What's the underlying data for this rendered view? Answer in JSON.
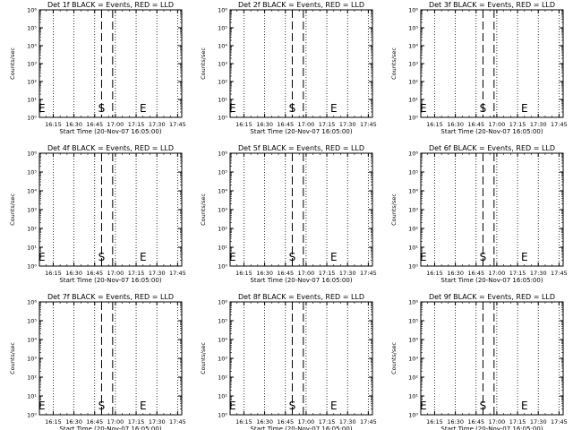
{
  "chart_data": [
    {
      "type": "line",
      "title": "Det 1f BLACK = Events, RED = LLD",
      "xlabel": "Start Time (20-Nov-07 16:05:00)",
      "start_label": "S",
      "end_label": "E",
      "series": []
    },
    {
      "type": "line",
      "title": "Det 2f BLACK = Events, RED = LLD",
      "xlabel": "Start Time (20-Nov-07 16:05:00)",
      "start_label": "S",
      "end_label": "E",
      "series": []
    },
    {
      "type": "line",
      "title": "Det 3f BLACK = Events, RED = LLD",
      "xlabel": "Start Time (20-Nov-07 16:05:00)",
      "start_label": "S",
      "end_label": "E",
      "series": []
    },
    {
      "type": "line",
      "title": "Det 4f BLACK = Events, RED = LLD",
      "xlabel": "Start Time (20-Nov-07 16:05:00)",
      "start_label": "S",
      "end_label": "E",
      "series": []
    },
    {
      "type": "line",
      "title": "Det 5f BLACK = Events, RED = LLD",
      "xlabel": "Start Time (20-Nov-07 16:05:00)",
      "start_label": "S",
      "end_label": "E",
      "series": []
    },
    {
      "type": "line",
      "title": "Det 6f BLACK = Events, RED = LLD",
      "xlabel": "Start Time (20-Nov-07 16:05:00)",
      "start_label": "S",
      "end_label": "E",
      "series": []
    },
    {
      "type": "line",
      "title": "Det 7f BLACK = Events, RED = LLD",
      "xlabel": "Start Time (20-Nov-07 16:05:00)",
      "start_label": "S",
      "end_label": "E",
      "series": []
    },
    {
      "type": "line",
      "title": "Det 8f BLACK = Events, RED = LLD",
      "xlabel": "Start Time (20-Nov-07 16:05:00)",
      "start_label": "S",
      "end_label": "E",
      "series": []
    },
    {
      "type": "line",
      "title": "Det 9f BLACK = Events, RED = LLD",
      "xlabel": "Start Time (20-Nov-07 16:05:00)",
      "start_label": "S",
      "end_label": "E",
      "series": []
    }
  ],
  "shared_axes": {
    "ylabel": "Counts/sec",
    "y_scale": "log",
    "ylim": [
      1,
      1000000
    ],
    "y_tick_values": [
      1,
      10,
      100,
      1000,
      10000,
      100000,
      1000000
    ],
    "y_tick_labels": [
      "10⁰",
      "10¹",
      "10²",
      "10³",
      "10⁴",
      "10⁵",
      "10⁶"
    ],
    "x_range": [
      "16:05",
      "17:48"
    ],
    "x_tick_labels": [
      "16:15",
      "16:30",
      "16:45",
      "17:00",
      "17:15",
      "17:30",
      "17:45"
    ],
    "x_tick_minutes": [
      15,
      30,
      45,
      60,
      75,
      90,
      105
    ],
    "x_range_minutes": [
      5,
      108
    ],
    "start_marker_minutes": 50,
    "end_marker_minutes": 80,
    "dashed_lines_minutes": [
      50,
      58
    ],
    "dotted_lines_minutes": [
      15,
      30,
      45,
      60,
      75,
      90,
      105
    ],
    "grid": false,
    "background": "#ffffff",
    "ink": "#000000"
  }
}
